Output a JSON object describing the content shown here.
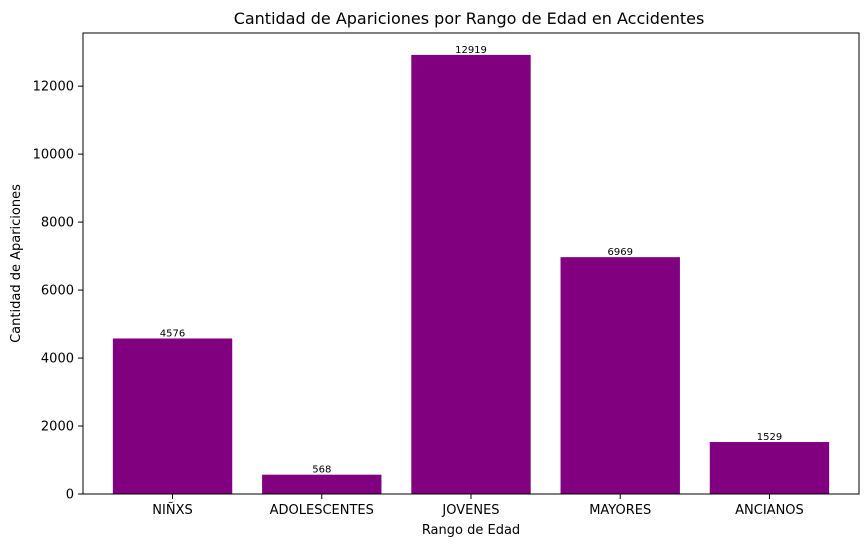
{
  "chart_data": {
    "type": "bar",
    "title": "Cantidad de Apariciones por Rango de Edad en Accidentes",
    "xlabel": "Rango de Edad",
    "ylabel": "Cantidad de Apariciones",
    "categories": [
      "NIÑXS",
      "ADOLESCENTES",
      "JOVENES",
      "MAYORES",
      "ANCIANOS"
    ],
    "values": [
      4576,
      568,
      12919,
      6969,
      1529
    ],
    "ylim": [
      0,
      13564
    ],
    "yticks": [
      0,
      2000,
      4000,
      6000,
      8000,
      10000,
      12000
    ],
    "bar_color": "#800080",
    "grid": false
  }
}
